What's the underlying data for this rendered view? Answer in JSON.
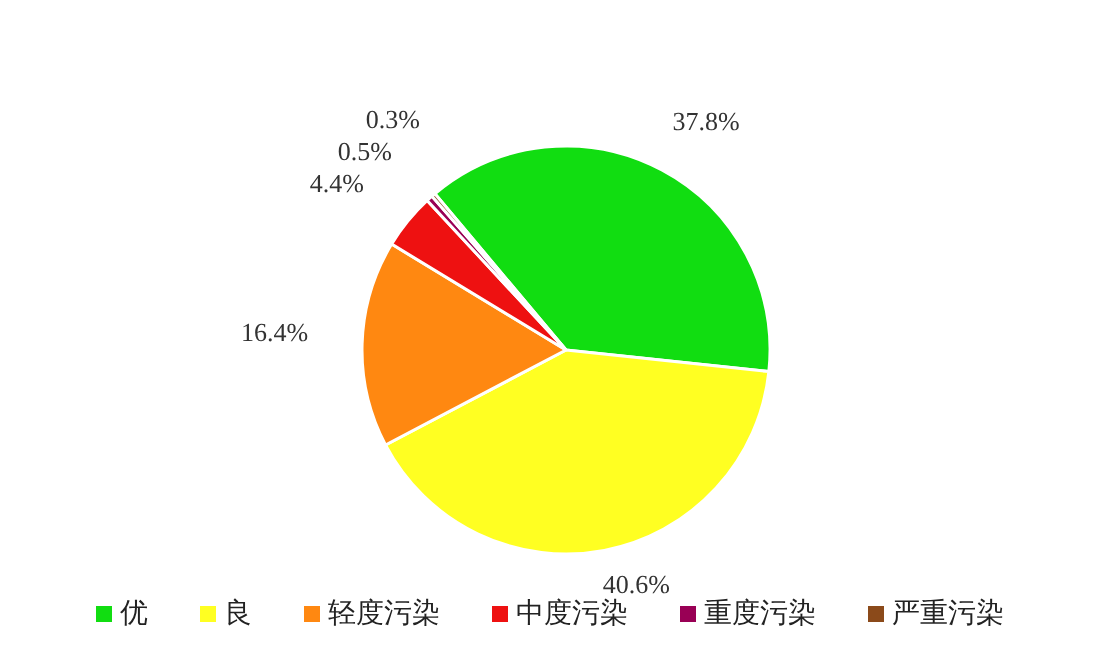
{
  "chart_data": {
    "type": "pie",
    "categories": [
      "优",
      "良",
      "轻度污染",
      "中度污染",
      "重度污染",
      "严重污染"
    ],
    "values": [
      37.8,
      40.6,
      16.4,
      4.4,
      0.5,
      0.3
    ],
    "colors": [
      "#11dd11",
      "#ffff22",
      "#ff8811",
      "#ee1111",
      "#990055",
      "#8b4a1a"
    ],
    "value_labels": [
      "37.8%",
      "40.6%",
      "16.4%",
      "4.4%",
      "0.5%",
      "0.3%"
    ],
    "legend": "bottom"
  }
}
